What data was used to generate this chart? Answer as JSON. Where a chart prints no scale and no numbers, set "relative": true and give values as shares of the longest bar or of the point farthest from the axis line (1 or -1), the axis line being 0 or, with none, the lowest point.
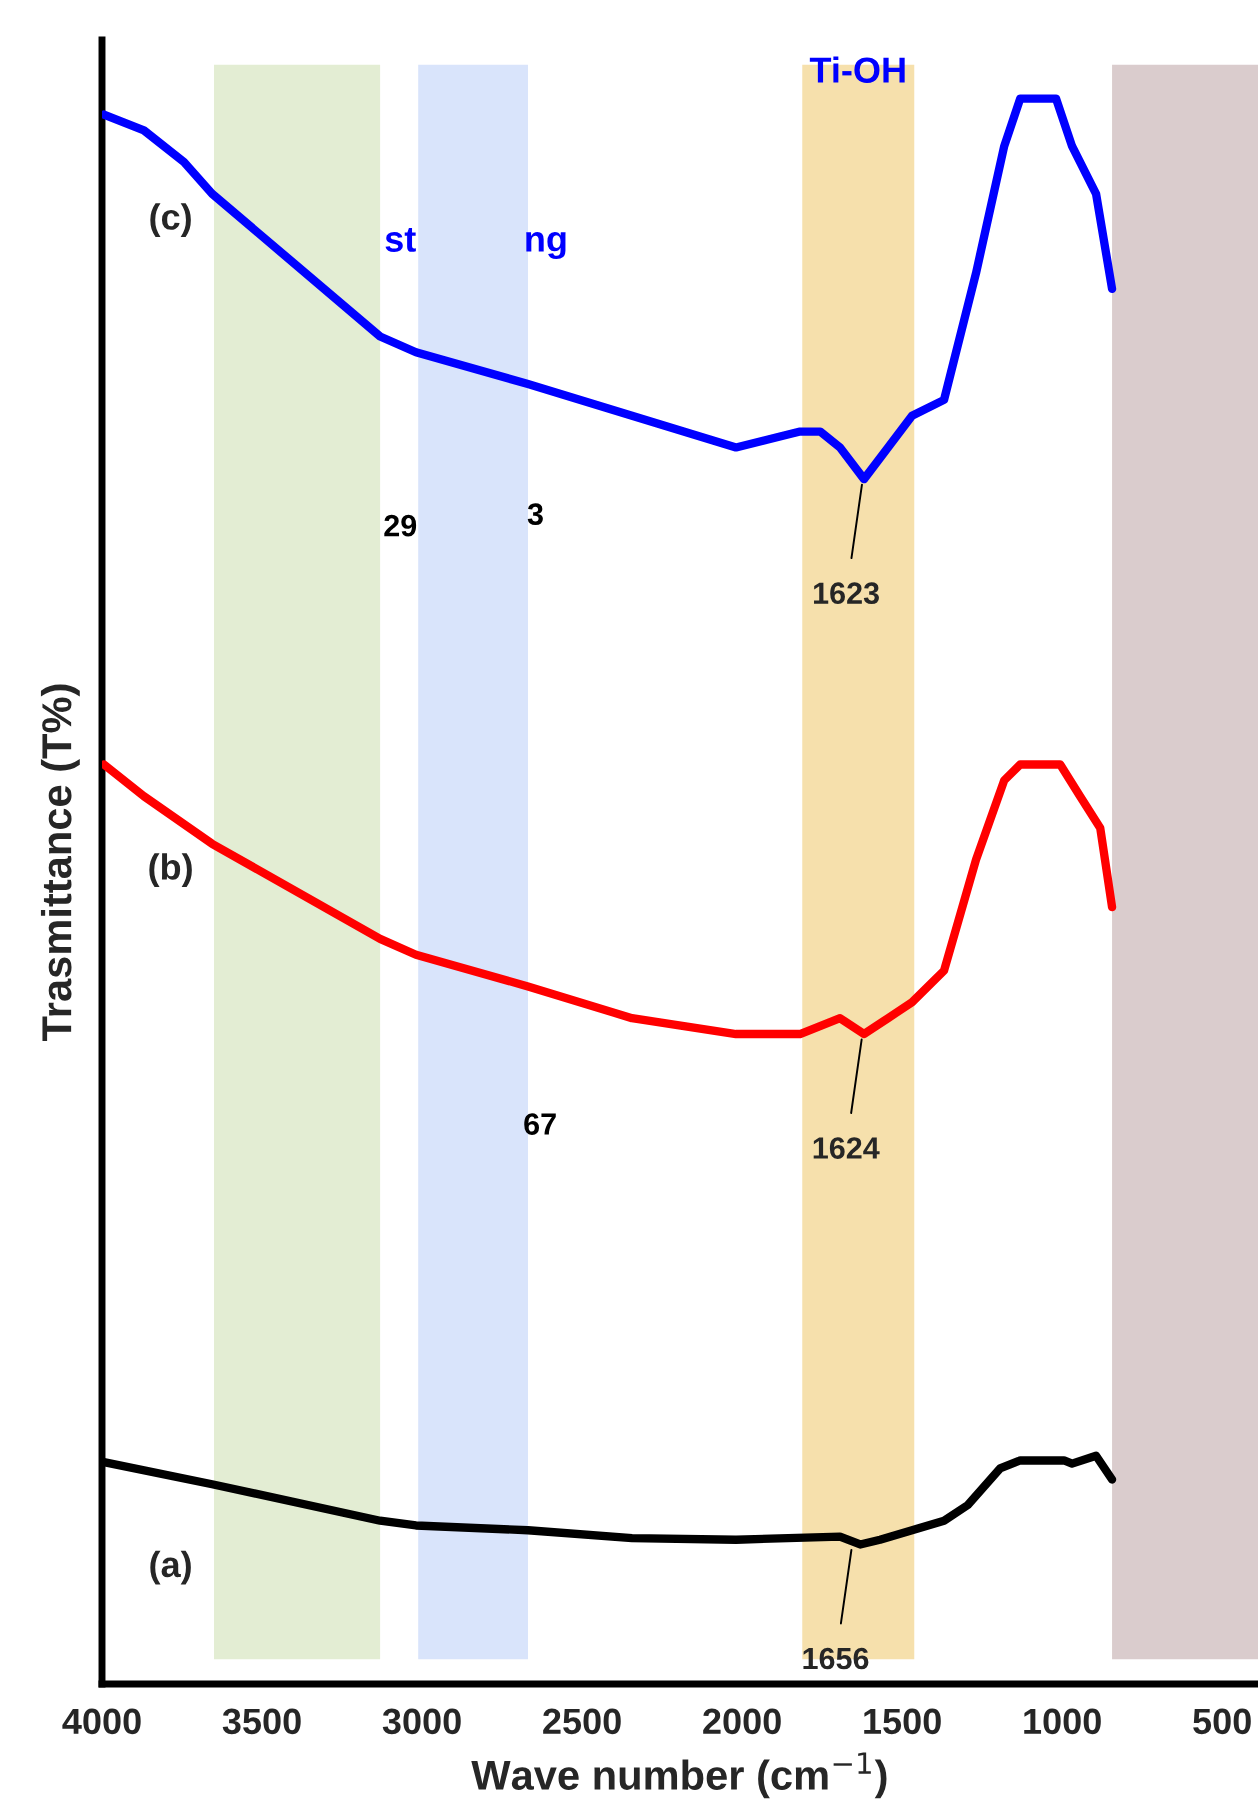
{
  "chart_data": {
    "type": "line",
    "relative": true,
    "xlabel": "Wave number (cm$^{−1}$)",
    "ylabel": "Trasmittance (T%)",
    "xlim": [
      4000,
      388
    ],
    "xticks": [
      4000,
      3500,
      3000,
      2500,
      2000,
      1500,
      1000,
      500
    ],
    "tick_labels": "x",
    "grid": false,
    "legend": false,
    "line_style": "solid",
    "marker": "none",
    "series": [
      {
        "name": "(c)",
        "color": "#0000ff",
        "x": [
          3994,
          3869,
          3744,
          3656,
          3131,
          3019,
          2669,
          2344,
          2019,
          1819,
          1756,
          1694,
          1619,
          1544,
          1469,
          1369,
          1269,
          1181,
          1131,
          1019,
          969,
          894,
          844
        ],
        "values": [
          0.99,
          0.98,
          0.96,
          0.94,
          0.85,
          0.84,
          0.82,
          0.8,
          0.78,
          0.79,
          0.79,
          0.78,
          0.76,
          0.78,
          0.8,
          0.81,
          0.89,
          0.97,
          1.0,
          1.0,
          0.97,
          0.94,
          0.88
        ]
      },
      {
        "name": "(b)",
        "color": "#ff0000",
        "x": [
          3994,
          3869,
          3656,
          3131,
          3019,
          2669,
          2344,
          2019,
          1819,
          1694,
          1619,
          1544,
          1469,
          1369,
          1269,
          1181,
          1131,
          1006,
          944,
          881,
          844
        ],
        "values": [
          0.58,
          0.56,
          0.53,
          0.47,
          0.46,
          0.44,
          0.42,
          0.41,
          0.41,
          0.42,
          0.41,
          0.42,
          0.43,
          0.45,
          0.52,
          0.57,
          0.58,
          0.58,
          0.56,
          0.54,
          0.49
        ]
      },
      {
        "name": "(a)",
        "color": "#000000",
        "x": [
          3994,
          3656,
          3131,
          3019,
          2669,
          2344,
          2019,
          1694,
          1631,
          1569,
          1469,
          1369,
          1294,
          1194,
          1131,
          994,
          969,
          894,
          844
        ],
        "values": [
          0.14,
          0.126,
          0.103,
          0.1,
          0.097,
          0.092,
          0.091,
          0.093,
          0.088,
          0.091,
          0.097,
          0.103,
          0.113,
          0.136,
          0.141,
          0.141,
          0.139,
          0.144,
          0.129
        ]
      }
    ],
    "bands": [
      {
        "axis": "x",
        "from": 3650,
        "to": 3131,
        "color": "#e3edd3"
      },
      {
        "axis": "x",
        "from": 3012,
        "to": 2669,
        "color": "#d9e4fb"
      },
      {
        "axis": "x",
        "from": 1812,
        "to": 1462,
        "color": "#f6e0ac",
        "label": "Ti-OH"
      },
      {
        "axis": "x",
        "from": 844,
        "to": 388,
        "color": "#dacccd"
      }
    ],
    "annotations": [
      "st",
      "ng",
      "29",
      "3",
      "67",
      {
        "text": "1623",
        "x": 1623,
        "y": 0.76
      },
      {
        "text": "1624",
        "x": 1624,
        "y": 0.41
      },
      {
        "text": "1656",
        "x": 1656,
        "y": 0.088
      }
    ]
  }
}
